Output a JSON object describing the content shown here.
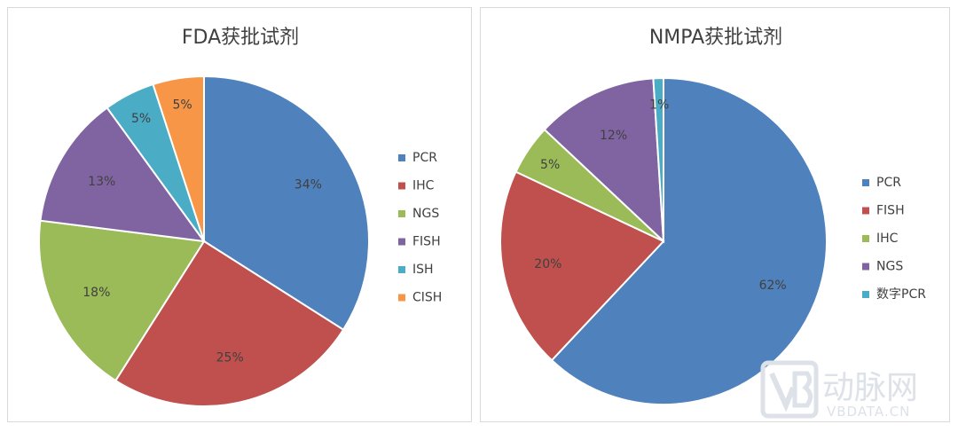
{
  "chart_data": [
    {
      "type": "pie",
      "title": "FDA获批试剂",
      "legend_position": "right",
      "slices": [
        {
          "label": "PCR",
          "value": 34,
          "display": "34%",
          "color": "#4f81bd"
        },
        {
          "label": "IHC",
          "value": 25,
          "display": "25%",
          "color": "#c0504d"
        },
        {
          "label": "NGS",
          "value": 18,
          "display": "18%",
          "color": "#9bbb59"
        },
        {
          "label": "FISH",
          "value": 13,
          "display": "13%",
          "color": "#8064a2"
        },
        {
          "label": "ISH",
          "value": 5,
          "display": "5%",
          "color": "#4bacc6"
        },
        {
          "label": "CISH",
          "value": 5,
          "display": "5%",
          "color": "#f79646"
        }
      ]
    },
    {
      "type": "pie",
      "title": "NMPA获批试剂",
      "legend_position": "right",
      "slices": [
        {
          "label": "PCR",
          "value": 62,
          "display": "62%",
          "color": "#4f81bd"
        },
        {
          "label": "FISH",
          "value": 20,
          "display": "20%",
          "color": "#c0504d"
        },
        {
          "label": "IHC",
          "value": 5,
          "display": "5%",
          "color": "#9bbb59"
        },
        {
          "label": "NGS",
          "value": 12,
          "display": "12%",
          "color": "#8064a2"
        },
        {
          "label": "数字PCR",
          "value": 1,
          "display": "1%",
          "color": "#4bacc6"
        }
      ]
    }
  ],
  "watermark": {
    "cn": "动脉网",
    "en": "VBDATA.CN"
  }
}
